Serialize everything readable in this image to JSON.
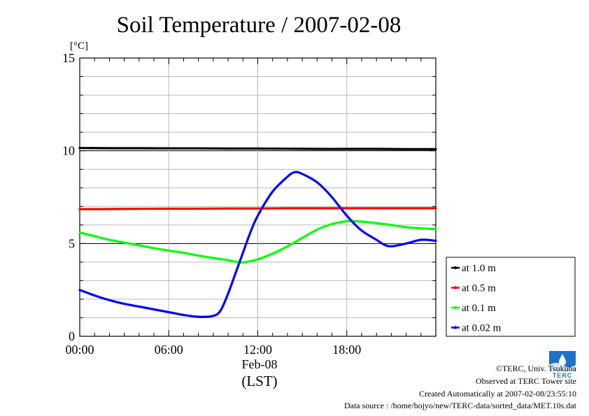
{
  "chart_data": {
    "type": "line",
    "title": "Soil Temperature / 2007-02-08",
    "ylabel": "[°C]",
    "xlabel": "(LST)",
    "date_label": "Feb-08",
    "ylim": [
      0,
      15
    ],
    "yticks": [
      "0",
      "5",
      "10",
      "15"
    ],
    "xlim": [
      0,
      24
    ],
    "xticks": [
      {
        "value": 0,
        "label": "00:00"
      },
      {
        "value": 6,
        "label": "06:00"
      },
      {
        "value": 12,
        "label": "12:00"
      },
      {
        "value": 18,
        "label": "18:00"
      }
    ],
    "grid": true,
    "legend_position": "bottom-right, outside plot",
    "series": [
      {
        "name": "at 1.0 m",
        "color": "#000000",
        "x": [
          0,
          2,
          4,
          6,
          8,
          10,
          12,
          14,
          16,
          18,
          20,
          22,
          24
        ],
        "y": [
          10.15,
          10.14,
          10.14,
          10.13,
          10.13,
          10.12,
          10.12,
          10.11,
          10.1,
          10.1,
          10.1,
          10.09,
          10.09
        ]
      },
      {
        "name": "at 0.5 m",
        "color": "#ff0000",
        "x": [
          0,
          2,
          4,
          6,
          8,
          10,
          12,
          14,
          16,
          18,
          20,
          22,
          24
        ],
        "y": [
          6.85,
          6.86,
          6.87,
          6.88,
          6.88,
          6.89,
          6.89,
          6.9,
          6.9,
          6.9,
          6.9,
          6.9,
          6.9
        ]
      },
      {
        "name": "at 0.1 m",
        "color": "#00ff00",
        "x": [
          0,
          1,
          2,
          3,
          4,
          5,
          6,
          7,
          8,
          9,
          10,
          10.5,
          11,
          12,
          13,
          14,
          15,
          16,
          17,
          18,
          19,
          20,
          21,
          22,
          23,
          24
        ],
        "y": [
          5.6,
          5.4,
          5.2,
          5.05,
          4.9,
          4.75,
          4.62,
          4.5,
          4.35,
          4.22,
          4.1,
          4.02,
          3.98,
          4.15,
          4.45,
          4.85,
          5.3,
          5.75,
          6.05,
          6.2,
          6.18,
          6.1,
          6.0,
          5.88,
          5.82,
          5.78
        ]
      },
      {
        "name": "at 0.02 m",
        "color": "#0000ff",
        "x": [
          0,
          1,
          2,
          3,
          4,
          5,
          6,
          7,
          8,
          9,
          9.5,
          10,
          10.5,
          11,
          11.5,
          12,
          13,
          14,
          14.5,
          15,
          16,
          17,
          18,
          19,
          20,
          20.5,
          21,
          22,
          23,
          24
        ],
        "y": [
          2.5,
          2.2,
          1.95,
          1.75,
          1.6,
          1.45,
          1.3,
          1.15,
          1.05,
          1.1,
          1.4,
          2.3,
          3.4,
          4.5,
          5.6,
          6.5,
          7.8,
          8.6,
          8.85,
          8.75,
          8.3,
          7.5,
          6.5,
          5.7,
          5.2,
          4.95,
          4.85,
          5.0,
          5.2,
          5.15
        ]
      }
    ]
  },
  "credits": {
    "copyright": "©TERC, Univ. Tsukuba",
    "observed": "Observed at TERC Tower site",
    "created": "Created Automatically at 2007-02-08/23:55:10",
    "source": "Data source : /home/hojyo/new/TERC-data/sorted_data/MET.10s.dat",
    "logo_text": "TERC"
  }
}
